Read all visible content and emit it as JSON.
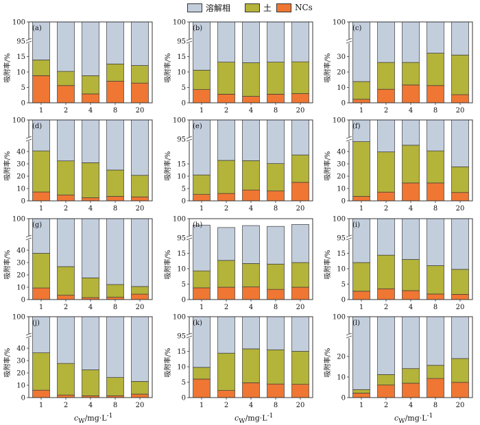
{
  "colors": {
    "solution": "#c3cedd",
    "soil": "#b4b33a",
    "ncs": "#ef7733",
    "frame": "#333333"
  },
  "legend": [
    {
      "label": "溶解相",
      "color_key": "solution"
    },
    {
      "label": "土",
      "color_key": "soil"
    },
    {
      "label": "NCs",
      "color_key": "ncs"
    }
  ],
  "xaxis_label": {
    "base": "c",
    "sub": "W",
    "rest": "/mg·L",
    "sup": "-1"
  },
  "chart_data": [
    {
      "type": "bar",
      "panel": "(a)",
      "ylabel": "吸附率/%",
      "categories": [
        "1",
        "2",
        "4",
        "8",
        "20"
      ],
      "broken_axis": true,
      "ylim_lower": [
        0,
        20
      ],
      "lower_ticks": [
        0,
        5,
        10,
        15
      ],
      "ylim_upper": [
        95,
        100
      ],
      "upper_ticks": [
        95,
        100
      ],
      "series": [
        {
          "name": "NCs",
          "values": [
            8.8,
            5.6,
            2.9,
            7.0,
            6.4
          ]
        },
        {
          "name": "土",
          "values": [
            5.1,
            4.6,
            5.9,
            5.6,
            5.7
          ]
        },
        {
          "name": "溶解相",
          "values": [
            86.1,
            89.8,
            91.2,
            87.4,
            87.9
          ]
        }
      ]
    },
    {
      "type": "bar",
      "panel": "(b)",
      "ylabel": "吸附率/%",
      "categories": [
        "1",
        "2",
        "4",
        "8",
        "20"
      ],
      "broken_axis": true,
      "ylim_lower": [
        0,
        20
      ],
      "lower_ticks": [
        0,
        5,
        10,
        15
      ],
      "ylim_upper": [
        95,
        100
      ],
      "upper_ticks": [
        95,
        100
      ],
      "series": [
        {
          "name": "NCs",
          "values": [
            4.3,
            2.8,
            2.1,
            2.8,
            3.0
          ]
        },
        {
          "name": "土",
          "values": [
            6.3,
            10.4,
            10.9,
            10.4,
            10.3
          ]
        },
        {
          "name": "溶解相",
          "values": [
            89.4,
            86.8,
            87.0,
            86.8,
            86.7
          ]
        }
      ]
    },
    {
      "type": "bar",
      "panel": "(c)",
      "ylabel": "吸附率/%",
      "categories": [
        "1",
        "2",
        "4",
        "8",
        "20"
      ],
      "broken_axis": true,
      "ylim_lower": [
        0,
        40
      ],
      "lower_ticks": [
        0,
        10,
        20,
        30
      ],
      "ylim_upper": [
        95,
        100
      ],
      "upper_ticks": [
        100
      ],
      "series": [
        {
          "name": "NCs",
          "values": [
            2.3,
            8.8,
            11.6,
            11.2,
            5.3
          ]
        },
        {
          "name": "土",
          "values": [
            11.5,
            17.4,
            14.6,
            21.0,
            25.7
          ]
        },
        {
          "name": "溶解相",
          "values": [
            86.2,
            73.8,
            73.8,
            67.8,
            69.0
          ]
        }
      ]
    },
    {
      "type": "bar",
      "panel": "(d)",
      "ylabel": "吸附率/%",
      "categories": [
        "1",
        "2",
        "4",
        "8",
        "20"
      ],
      "broken_axis": true,
      "ylim_lower": [
        0,
        50
      ],
      "lower_ticks": [
        0,
        10,
        20,
        30,
        40
      ],
      "ylim_upper": [
        95,
        100
      ],
      "upper_ticks": [
        100
      ],
      "series": [
        {
          "name": "NCs",
          "values": [
            7.2,
            4.7,
            2.5,
            3.6,
            3.2
          ]
        },
        {
          "name": "土",
          "values": [
            33.3,
            27.7,
            28.4,
            21.4,
            17.5
          ]
        },
        {
          "name": "溶解相",
          "values": [
            59.5,
            67.6,
            69.1,
            75.0,
            79.3
          ]
        }
      ]
    },
    {
      "type": "bar",
      "panel": "(e)",
      "ylabel": "吸附率/%",
      "categories": [
        "1",
        "2",
        "4",
        "8",
        "20"
      ],
      "broken_axis": true,
      "ylim_lower": [
        0,
        25
      ],
      "lower_ticks": [
        0,
        5,
        10,
        15
      ],
      "ylim_upper": [
        95,
        100
      ],
      "upper_ticks": [
        95,
        100
      ],
      "series": [
        {
          "name": "NCs",
          "values": [
            2.6,
            3.0,
            4.4,
            4.0,
            7.5
          ]
        },
        {
          "name": "土",
          "values": [
            7.9,
            13.4,
            11.9,
            11.1,
            11.1
          ]
        },
        {
          "name": "溶解相",
          "values": [
            89.5,
            83.6,
            83.7,
            84.9,
            81.4
          ]
        }
      ]
    },
    {
      "type": "bar",
      "panel": "(f)",
      "ylabel": "吸附率/%",
      "categories": [
        "1",
        "2",
        "4",
        "8",
        "20"
      ],
      "broken_axis": true,
      "ylim_lower": [
        0,
        50
      ],
      "lower_ticks": [
        0,
        10,
        20,
        30,
        40
      ],
      "ylim_upper": [
        95,
        100
      ],
      "upper_ticks": [
        100
      ],
      "series": [
        {
          "name": "NCs",
          "values": [
            3.6,
            7.1,
            14.5,
            14.5,
            6.8
          ]
        },
        {
          "name": "土",
          "values": [
            44.4,
            32.6,
            30.6,
            26.0,
            20.8
          ]
        },
        {
          "name": "溶解相",
          "values": [
            52.0,
            60.3,
            54.9,
            59.5,
            72.4
          ]
        }
      ]
    },
    {
      "type": "bar",
      "panel": "(g)",
      "ylabel": "吸附率/%",
      "categories": [
        "1",
        "2",
        "4",
        "8",
        "20"
      ],
      "broken_axis": true,
      "ylim_lower": [
        0,
        50
      ],
      "lower_ticks": [
        0,
        10,
        20,
        30,
        40
      ],
      "ylim_upper": [
        95,
        100
      ],
      "upper_ticks": [
        100
      ],
      "series": [
        {
          "name": "NCs",
          "values": [
            9.4,
            3.5,
            1.6,
            1.9,
            4.4
          ]
        },
        {
          "name": "土",
          "values": [
            28.1,
            23.2,
            16.0,
            10.3,
            6.2
          ]
        },
        {
          "name": "溶解相",
          "values": [
            62.5,
            73.3,
            82.4,
            87.8,
            89.4
          ]
        }
      ]
    },
    {
      "type": "bar",
      "panel": "(h)",
      "ylabel": "吸附率/%",
      "categories": [
        "1",
        "2",
        "4",
        "8",
        "20"
      ],
      "broken_axis": true,
      "ylim_lower": [
        0,
        20
      ],
      "lower_ticks": [
        0,
        5,
        10,
        15
      ],
      "ylim_upper": [
        95,
        100
      ],
      "upper_ticks": [
        95,
        100
      ],
      "series": [
        {
          "name": "NCs",
          "values": [
            3.8,
            4.0,
            4.1,
            3.3,
            4.0
          ]
        },
        {
          "name": "土",
          "values": [
            5.5,
            8.7,
            7.6,
            8.2,
            8.0
          ]
        },
        {
          "name": "溶解相",
          "values": [
            89.0,
            85.0,
            86.5,
            86.5,
            86.5
          ]
        }
      ]
    },
    {
      "type": "bar",
      "panel": "(i)",
      "ylabel": "吸附率/%",
      "categories": [
        "1",
        "2",
        "4",
        "8",
        "20"
      ],
      "broken_axis": true,
      "ylim_lower": [
        0,
        20
      ],
      "lower_ticks": [
        0,
        5,
        10,
        15
      ],
      "ylim_upper": [
        95,
        100
      ],
      "upper_ticks": [
        95,
        100
      ],
      "series": [
        {
          "name": "NCs",
          "values": [
            2.7,
            3.5,
            2.9,
            1.8,
            1.7
          ]
        },
        {
          "name": "土",
          "values": [
            9.3,
            10.9,
            10.1,
            9.2,
            8.1
          ]
        },
        {
          "name": "溶解相",
          "values": [
            88.0,
            85.6,
            87.0,
            89.0,
            90.2
          ]
        }
      ]
    },
    {
      "type": "bar",
      "panel": "(j)",
      "ylabel": "吸附率/%",
      "categories": [
        "1",
        "2",
        "4",
        "8",
        "20"
      ],
      "broken_axis": true,
      "ylim_lower": [
        0,
        50
      ],
      "lower_ticks": [
        0,
        10,
        20,
        30,
        40
      ],
      "ylim_upper": [
        95,
        100
      ],
      "upper_ticks": [
        100
      ],
      "series": [
        {
          "name": "NCs",
          "values": [
            6.0,
            2.1,
            1.5,
            1.5,
            2.8
          ]
        },
        {
          "name": "土",
          "values": [
            30.3,
            25.6,
            21.0,
            14.8,
            10.3
          ]
        },
        {
          "name": "溶解相",
          "values": [
            63.7,
            72.3,
            77.5,
            83.7,
            86.9
          ]
        }
      ]
    },
    {
      "type": "bar",
      "panel": "(k)",
      "ylabel": "吸附率/%",
      "categories": [
        "1",
        "2",
        "4",
        "8",
        "20"
      ],
      "broken_axis": true,
      "ylim_lower": [
        0,
        20
      ],
      "lower_ticks": [
        0,
        5,
        10,
        15
      ],
      "ylim_upper": [
        95,
        100
      ],
      "upper_ticks": [
        95,
        100
      ],
      "series": [
        {
          "name": "NCs",
          "values": [
            6.0,
            2.3,
            4.8,
            4.4,
            4.3
          ]
        },
        {
          "name": "土",
          "values": [
            3.8,
            12.1,
            11.0,
            11.1,
            10.7
          ]
        },
        {
          "name": "溶解相",
          "values": [
            90.2,
            85.6,
            84.2,
            84.5,
            85.0
          ]
        }
      ]
    },
    {
      "type": "bar",
      "panel": "(l)",
      "ylabel": "吸附率/%",
      "categories": [
        "1",
        "2",
        "4",
        "8",
        "20"
      ],
      "broken_axis": true,
      "ylim_lower": [
        0,
        30
      ],
      "lower_ticks": [
        0,
        10,
        20
      ],
      "ylim_upper": [
        95,
        100
      ],
      "upper_ticks": [
        100
      ],
      "series": [
        {
          "name": "NCs",
          "values": [
            2.2,
            6.1,
            7.0,
            9.3,
            7.4
          ]
        },
        {
          "name": "土",
          "values": [
            1.7,
            5.1,
            7.1,
            6.4,
            11.6
          ]
        },
        {
          "name": "溶解相",
          "values": [
            96.1,
            88.8,
            85.9,
            84.3,
            81.0
          ]
        }
      ]
    }
  ]
}
